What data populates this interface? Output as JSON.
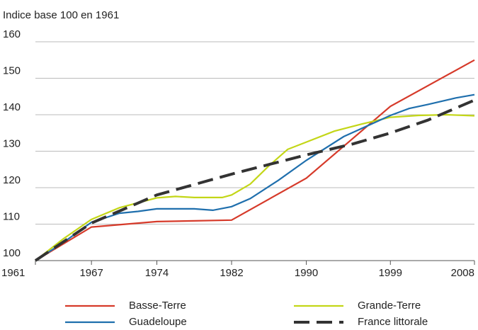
{
  "chart_data": {
    "type": "line",
    "y_label": "Indice base 100 en 1961",
    "xlim": [
      1961,
      2008
    ],
    "xticks": [
      1961,
      1967,
      1974,
      1982,
      1990,
      1999,
      2008
    ],
    "ylim": [
      100,
      160
    ],
    "yticks": [
      100,
      110,
      120,
      130,
      140,
      150,
      160
    ],
    "grid": true,
    "series": [
      {
        "name": "Basse-Terre",
        "color": "#d63a2a",
        "dash": false,
        "x": [
          1961,
          1967,
          1974,
          1982,
          1990,
          1999,
          2008
        ],
        "values": [
          100,
          109.2,
          110.7,
          111.1,
          122.6,
          142.3,
          155
        ]
      },
      {
        "name": "Grande-Terre",
        "color": "#c3d617",
        "dash": false,
        "x": [
          1961,
          1964,
          1967,
          1970,
          1974,
          1976,
          1978,
          1981,
          1982,
          1984,
          1986,
          1988,
          1990,
          1993,
          1996,
          1999,
          2002,
          2005,
          2008
        ],
        "values": [
          100,
          106,
          111.3,
          114.5,
          117.2,
          117.6,
          117.3,
          117.3,
          118,
          121,
          126,
          130.5,
          132.5,
          135.5,
          137.5,
          139.3,
          139.8,
          140,
          139.7
        ]
      },
      {
        "name": "Guadeloupe",
        "color": "#1f6fad",
        "dash": false,
        "x": [
          1961,
          1964,
          1967,
          1970,
          1972,
          1974,
          1978,
          1980,
          1982,
          1984,
          1987,
          1990,
          1994,
          1999,
          2001,
          2003,
          2006,
          2008
        ],
        "values": [
          100,
          105,
          110.5,
          113,
          113.5,
          114.2,
          114.2,
          113.8,
          114.8,
          117,
          122,
          127.5,
          134,
          139.8,
          141.7,
          142.8,
          144.6,
          145.5
        ]
      },
      {
        "name": "France littorale",
        "color": "#333333",
        "dash": true,
        "x": [
          1961,
          1967,
          1974,
          1982,
          1990,
          1995,
          1999,
          2003,
          2008
        ],
        "values": [
          100,
          110.3,
          118,
          123.7,
          129,
          132,
          135,
          138.5,
          144
        ]
      }
    ]
  }
}
